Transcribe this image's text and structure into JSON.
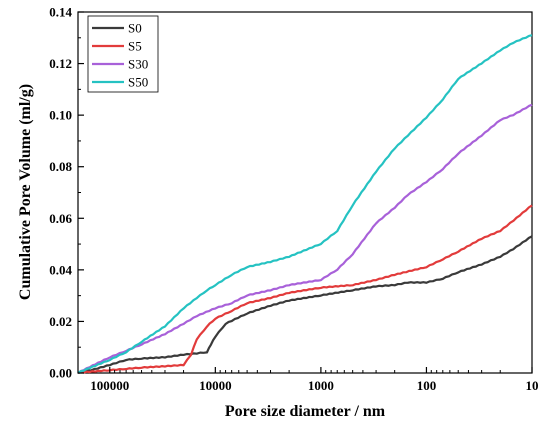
{
  "chart_data": {
    "type": "line",
    "title": "",
    "xlabel": "Pore size diameter / nm",
    "ylabel": "Cumulative Pore Volume (ml/g)",
    "x_scale": "log",
    "x_reversed": true,
    "xlim": [
      200000,
      10
    ],
    "ylim": [
      0,
      0.14
    ],
    "x_ticks": [
      100000,
      10000,
      1000,
      100,
      10
    ],
    "x_tick_labels": [
      "100000",
      "10000",
      "1000",
      "100",
      "10"
    ],
    "y_ticks": [
      0.0,
      0.02,
      0.04,
      0.06,
      0.08,
      0.1,
      0.12,
      0.14
    ],
    "y_tick_labels": [
      "0.00",
      "0.02",
      "0.04",
      "0.06",
      "0.08",
      "0.10",
      "0.12",
      "0.14"
    ],
    "grid": false,
    "legend_position": "top-left",
    "series": [
      {
        "name": "S0",
        "color": "#3a3a3a",
        "x": [
          200000,
          150000,
          100000,
          70000,
          50000,
          30000,
          20000,
          15000,
          12000,
          11000,
          10000,
          8000,
          5000,
          3000,
          2000,
          1000,
          500,
          300,
          200,
          150,
          100,
          70,
          50,
          30,
          20,
          15,
          10
        ],
        "y": [
          0.0,
          0.001,
          0.003,
          0.005,
          0.0055,
          0.006,
          0.007,
          0.0075,
          0.008,
          0.011,
          0.014,
          0.019,
          0.023,
          0.026,
          0.028,
          0.03,
          0.032,
          0.0335,
          0.034,
          0.035,
          0.035,
          0.0365,
          0.039,
          0.042,
          0.045,
          0.048,
          0.053
        ]
      },
      {
        "name": "S5",
        "color": "#e23b3b",
        "x": [
          200000,
          100000,
          70000,
          50000,
          30000,
          20000,
          17000,
          15000,
          12000,
          10000,
          7000,
          5000,
          3000,
          2000,
          1000,
          500,
          300,
          200,
          100,
          70,
          50,
          30,
          20,
          15,
          10
        ],
        "y": [
          0.0,
          0.001,
          0.0015,
          0.002,
          0.0025,
          0.003,
          0.007,
          0.013,
          0.018,
          0.021,
          0.024,
          0.027,
          0.029,
          0.031,
          0.033,
          0.034,
          0.036,
          0.038,
          0.041,
          0.044,
          0.047,
          0.052,
          0.055,
          0.059,
          0.065
        ]
      },
      {
        "name": "S30",
        "color": "#a861d9",
        "x": [
          200000,
          100000,
          70000,
          50000,
          30000,
          20000,
          15000,
          10000,
          7000,
          5000,
          3000,
          2000,
          1000,
          700,
          500,
          300,
          200,
          150,
          100,
          70,
          50,
          30,
          20,
          15,
          10
        ],
        "y": [
          0.0,
          0.006,
          0.0085,
          0.011,
          0.015,
          0.019,
          0.022,
          0.025,
          0.027,
          0.03,
          0.032,
          0.034,
          0.036,
          0.04,
          0.046,
          0.058,
          0.064,
          0.069,
          0.074,
          0.079,
          0.085,
          0.092,
          0.098,
          0.1,
          0.104
        ]
      },
      {
        "name": "S50",
        "color": "#25c2c2",
        "x": [
          200000,
          100000,
          70000,
          50000,
          30000,
          20000,
          15000,
          12000,
          10000,
          7000,
          5000,
          3000,
          2000,
          1000,
          700,
          500,
          300,
          200,
          150,
          100,
          70,
          50,
          30,
          20,
          15,
          10
        ],
        "y": [
          0.0,
          0.005,
          0.008,
          0.012,
          0.018,
          0.025,
          0.029,
          0.032,
          0.034,
          0.038,
          0.041,
          0.043,
          0.045,
          0.05,
          0.055,
          0.065,
          0.078,
          0.087,
          0.092,
          0.099,
          0.106,
          0.114,
          0.12,
          0.125,
          0.128,
          0.131
        ]
      }
    ]
  }
}
